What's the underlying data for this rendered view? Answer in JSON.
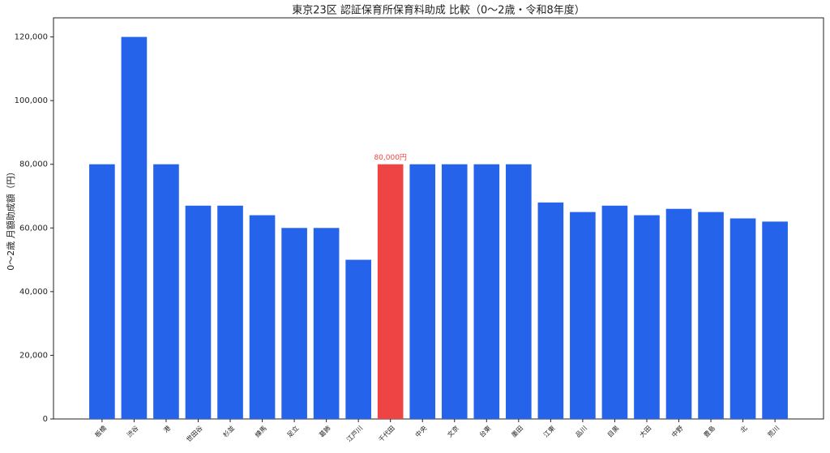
{
  "chart_data": {
    "type": "bar",
    "title": "東京23区 認証保育所保育料助成 比較（0～2歳・令和8年度）",
    "y_label": "0～2歳 月額助成額（円）",
    "categories": [
      "板橋",
      "渋谷",
      "港",
      "世田谷",
      "杉並",
      "練馬",
      "足立",
      "葛飾",
      "江戸川",
      "千代田",
      "中央",
      "文京",
      "台東",
      "墨田",
      "江東",
      "品川",
      "目黒",
      "大田",
      "中野",
      "豊島",
      "北",
      "荒川"
    ],
    "values": [
      80000,
      120000,
      80000,
      67000,
      67000,
      64000,
      60000,
      60000,
      50000,
      80000,
      80000,
      80000,
      80000,
      80000,
      68000,
      65000,
      67000,
      64000,
      66000,
      65000,
      63000,
      62000
    ],
    "value_labels": [
      null,
      null,
      null,
      null,
      null,
      null,
      null,
      null,
      null,
      "80,000円",
      null,
      null,
      null,
      null,
      null,
      null,
      null,
      null,
      null,
      null,
      null,
      null
    ],
    "colors": [
      "#2563eb",
      "#2563eb",
      "#2563eb",
      "#2563eb",
      "#2563eb",
      "#2563eb",
      "#2563eb",
      "#2563eb",
      "#2563eb",
      "#ef4444",
      "#2563eb",
      "#2563eb",
      "#2563eb",
      "#2563eb",
      "#2563eb",
      "#2563eb",
      "#2563eb",
      "#2563eb",
      "#2563eb",
      "#2563eb",
      "#2563eb",
      "#2563eb"
    ],
    "ylim": [
      0,
      126000
    ],
    "yticks": [
      0,
      {
        "value": 20000,
        "label": "20,000"
      },
      {
        "value": 40000,
        "label": "40,000"
      },
      {
        "value": 60000,
        "label": "60,000"
      },
      {
        "value": 80000,
        "label": "80,000"
      },
      {
        "value": 100000,
        "label": "100,000"
      },
      {
        "value": 120000,
        "label": "120,000"
      }
    ]
  }
}
